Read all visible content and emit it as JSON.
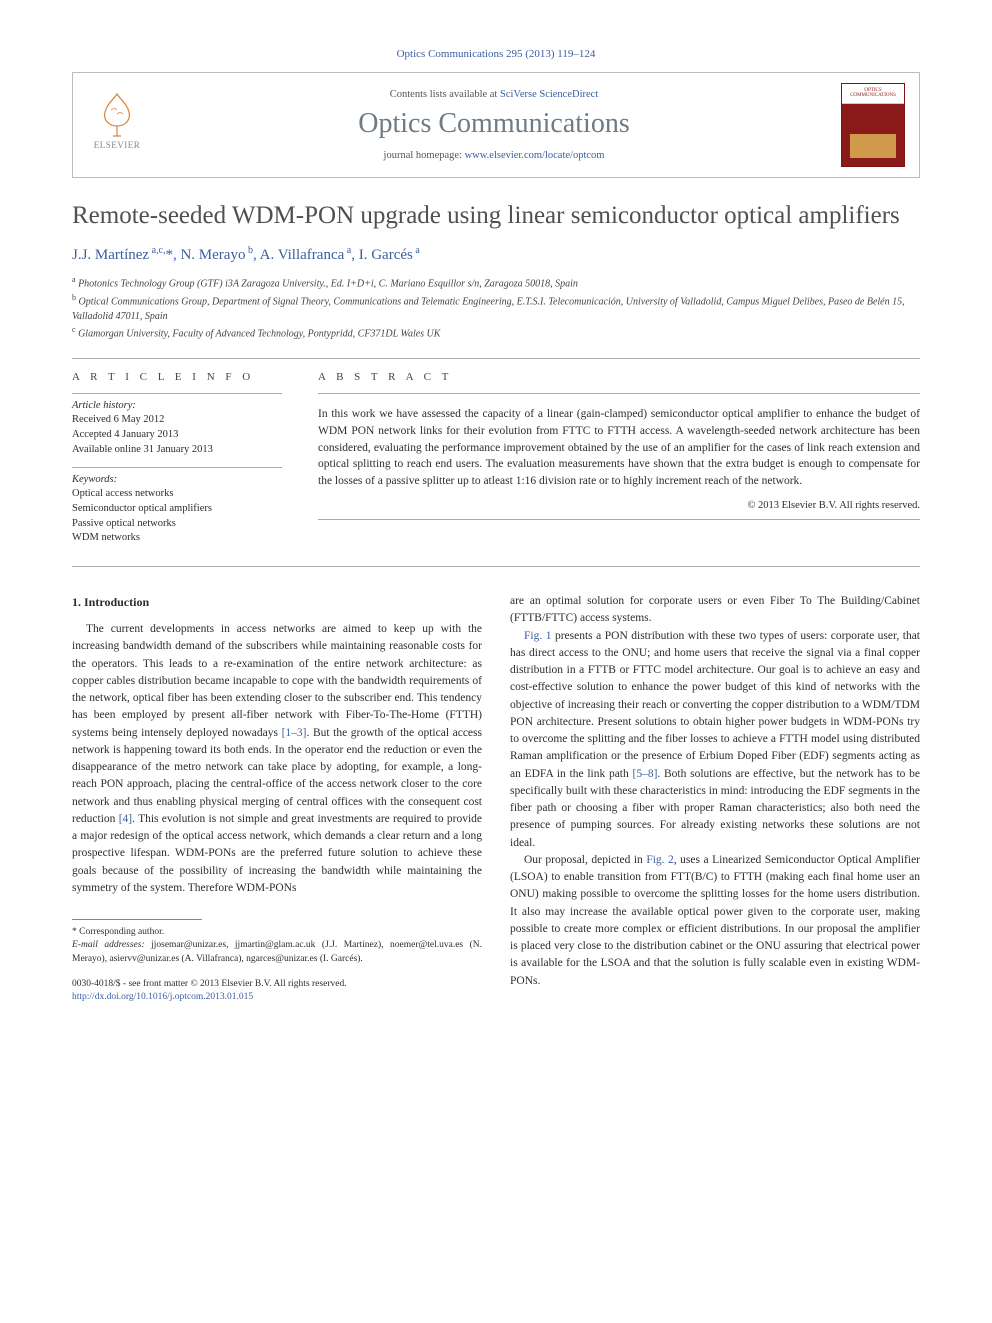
{
  "top_citation": "Optics Communications 295 (2013) 119–124",
  "header": {
    "contents_prefix": "Contents lists available at ",
    "contents_link": "SciVerse ScienceDirect",
    "journal_name": "Optics Communications",
    "homepage_prefix": "journal homepage: ",
    "homepage_link": "www.elsevier.com/locate/optcom",
    "publisher_label": "ELSEVIER",
    "cover_label": "OPTICS COMMUNICATIONS"
  },
  "article": {
    "title": "Remote-seeded WDM-PON upgrade using linear semiconductor optical amplifiers",
    "authors_html": "J.J. Martínez <sup>a,c,*</sup>, N. Merayo <sup>b</sup>, A. Villafranca <sup>a</sup>, I. Garcés <sup>a</sup>",
    "affiliations": [
      "a Photonics Technology Group (GTF) i3A Zaragoza University., Ed. I+D+i, C. Mariano Esquillor s/n, Zaragoza 50018, Spain",
      "b Optical Communications Group, Department of Signal Theory, Communications and Telematic Engineering, E.T.S.I. Telecomunicación, University of Valladolid, Campus Miguel Delibes, Paseo de Belén 15, Valladolid 47011, Spain",
      "c Glamorgan University, Faculty of Advanced Technology, Pontypridd, CF371DL Wales UK"
    ]
  },
  "meta": {
    "info_heading": "A R T I C L E   I N F O",
    "abstract_heading": "A B S T R A C T",
    "history_label": "Article history:",
    "history": [
      "Received 6 May 2012",
      "Accepted 4 January 2013",
      "Available online 31 January 2013"
    ],
    "keywords_label": "Keywords:",
    "keywords": [
      "Optical access networks",
      "Semiconductor optical amplifiers",
      "Passive optical networks",
      "WDM networks"
    ],
    "abstract": "In this work we have assessed the capacity of a linear (gain-clamped) semiconductor optical amplifier to enhance the budget of WDM PON network links for their evolution from FTTC to FTTH access. A wavelength-seeded network architecture has been considered, evaluating the performance improvement obtained by the use of an amplifier for the cases of link reach extension and optical splitting to reach end users. The evaluation measurements have shown that the extra budget is enough to compensate for the losses of a passive splitter up to atleast 1:16 division rate or to highly increment reach of the network.",
    "copyright": "© 2013 Elsevier B.V. All rights reserved."
  },
  "body": {
    "section_heading": "1. Introduction",
    "col1_p1": "The current developments in access networks are aimed to keep up with the increasing bandwidth demand of the subscribers while maintaining reasonable costs for the operators. This leads to a re-examination of the entire network architecture: as copper cables distribution became incapable to cope with the bandwidth requirements of the network, optical fiber has been extending closer to the subscriber end. This tendency has been employed by present all-fiber network with Fiber-To-The-Home (FTTH) systems being intensely deployed nowadays [1–3]. But the growth of the optical access network is happening toward its both ends. In the operator end the reduction or even the disappearance of the metro network can take place by adopting, for example, a long-reach PON approach, placing the central-office of the access network closer to the core network and thus enabling physical merging of central offices with the consequent cost reduction [4]. This evolution is not simple and great investments are required to provide a major redesign of the optical access network, which demands a clear return and a long prospective lifespan. WDM-PONs are the preferred future solution to achieve these goals because of the possibility of increasing the bandwidth while maintaining the symmetry of the system. Therefore WDM-PONs",
    "col2_p1": "are an optimal solution for corporate users or even Fiber To The Building/Cabinet (FTTB/FTTC) access systems.",
    "col2_p2": "Fig. 1 presents a PON distribution with these two types of users: corporate user, that has direct access to the ONU; and home users that receive the signal via a final copper distribution in a FTTB or FTTC model architecture. Our goal is to achieve an easy and cost-effective solution to enhance the power budget of this kind of networks with the objective of increasing their reach or converting the copper distribution to a WDM/TDM PON architecture. Present solutions to obtain higher power budgets in WDM-PONs try to overcome the splitting and the fiber losses to achieve a FTTH model using distributed Raman amplification or the presence of Erbium Doped Fiber (EDF) segments acting as an EDFA in the link path [5–8]. Both solutions are effective, but the network has to be specifically built with these characteristics in mind: introducing the EDF segments in the fiber path or choosing a fiber with proper Raman characteristics; also both need the presence of pumping sources. For already existing networks these solutions are not ideal.",
    "col2_p3": "Our proposal, depicted in Fig. 2, uses a Linearized Semiconductor Optical Amplifier (LSOA) to enable transition from FTT(B/C) to FTTH (making each final home user an ONU) making possible to overcome the splitting losses for the home users distribution. It also may increase the available optical power given to the corporate user, making possible to create more complex or efficient distributions. In our proposal the amplifier is placed very close to the distribution cabinet or the ONU assuring that electrical power is available for the LSOA and that the solution is fully scalable even in existing WDM-PONs."
  },
  "footnotes": {
    "corresponding": "* Corresponding author.",
    "email_label": "E-mail addresses:",
    "emails": " jjosemar@unizar.es, jjmartin@glam.ac.uk (J.J. Martínez), noemer@tel.uva.es (N. Merayo), asiervv@unizar.es (A. Villafranca), ngarces@unizar.es (I. Garcés)."
  },
  "footer": {
    "issn_line": "0030-4018/$ - see front matter © 2013 Elsevier B.V. All rights reserved.",
    "doi_link": "http://dx.doi.org/10.1016/j.optcom.2013.01.015"
  },
  "colors": {
    "link": "#3a5ea0",
    "journal_gray": "#6f7b84",
    "title_gray": "#505050",
    "cover_red": "#8a1a1a"
  }
}
